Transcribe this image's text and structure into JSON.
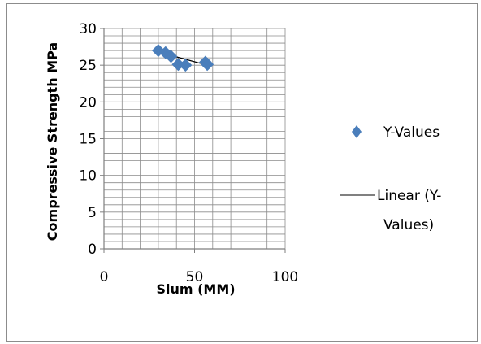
{
  "chart_data": {
    "type": "scatter",
    "xlabel": "Slum (MM)",
    "ylabel": "Compressive Strength MPa",
    "xlim": [
      0,
      100
    ],
    "ylim": [
      0,
      30
    ],
    "x_ticks": [
      "0",
      "50",
      "100"
    ],
    "y_ticks": [
      "0",
      "5",
      "10",
      "15",
      "20",
      "25",
      "30"
    ],
    "x_tick_values": [
      0,
      50,
      100
    ],
    "y_tick_values": [
      0,
      5,
      10,
      15,
      20,
      25,
      30
    ],
    "grid": true,
    "legend_position": "right",
    "series": [
      {
        "name": "Y-Values",
        "marker": "diamond",
        "color": "#4a7ebb",
        "x": [
          30,
          34,
          37,
          41,
          45,
          56,
          57
        ],
        "y": [
          27.0,
          26.7,
          26.2,
          25.1,
          25.0,
          25.4,
          25.1
        ]
      }
    ],
    "trendline": {
      "name": "Linear (Y-Values)",
      "legend_lines": [
        "Linear (Y-",
        "Values)"
      ],
      "color": "#000000",
      "x": [
        30,
        57
      ],
      "y": [
        26.8,
        25.0
      ]
    }
  }
}
